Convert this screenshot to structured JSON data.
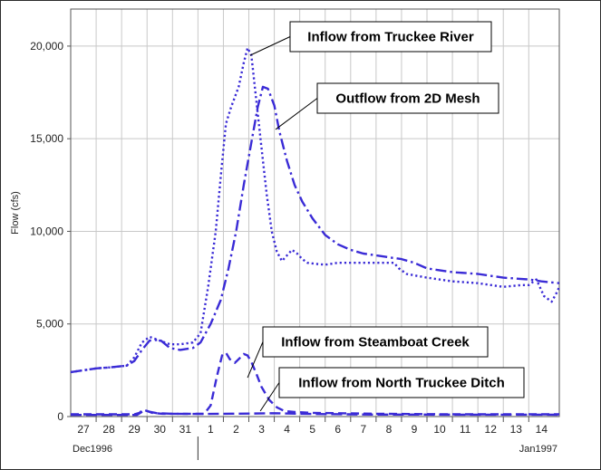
{
  "chart_data": {
    "type": "line",
    "ylabel": "Flow (cfs)",
    "ylim": [
      0,
      22000
    ],
    "yticks": [
      0,
      5000,
      10000,
      15000,
      20000
    ],
    "ytick_labels": [
      "0",
      "5,000",
      "10,000",
      "15,000",
      "20,000"
    ],
    "xlim": [
      0,
      19.2
    ],
    "x_tick_labels": [
      "27",
      "28",
      "29",
      "30",
      "31",
      "1",
      "2",
      "3",
      "4",
      "5",
      "6",
      "7",
      "8",
      "9",
      "10",
      "11",
      "12",
      "13",
      "14"
    ],
    "x_period_labels": [
      {
        "label": "Dec1996",
        "x": 0
      },
      {
        "label": "Jan1997",
        "x": 19.2
      }
    ],
    "grid": true,
    "line_color": "#3a2bd6",
    "series": [
      {
        "id": "truckee",
        "dash": "dotted",
        "points": [
          [
            0,
            2400
          ],
          [
            0.5,
            2500
          ],
          [
            1,
            2600
          ],
          [
            1.5,
            2650
          ],
          [
            2.2,
            2750
          ],
          [
            2.5,
            3200
          ],
          [
            2.8,
            4000
          ],
          [
            3.1,
            4300
          ],
          [
            3.5,
            4100
          ],
          [
            3.9,
            3900
          ],
          [
            4.3,
            3900
          ],
          [
            4.8,
            4000
          ],
          [
            5.1,
            4500
          ],
          [
            5.4,
            7000
          ],
          [
            5.7,
            10000
          ],
          [
            5.9,
            13000
          ],
          [
            6.1,
            15800
          ],
          [
            6.3,
            16700
          ],
          [
            6.6,
            17800
          ],
          [
            6.8,
            19100
          ],
          [
            6.95,
            19900
          ],
          [
            7.1,
            19500
          ],
          [
            7.3,
            17000
          ],
          [
            7.5,
            14500
          ],
          [
            7.7,
            12000
          ],
          [
            7.9,
            10000
          ],
          [
            8.1,
            8900
          ],
          [
            8.3,
            8400
          ],
          [
            8.5,
            8700
          ],
          [
            8.7,
            9000
          ],
          [
            8.9,
            8800
          ],
          [
            9.1,
            8500
          ],
          [
            9.3,
            8300
          ],
          [
            9.6,
            8250
          ],
          [
            10,
            8200
          ],
          [
            10.5,
            8300
          ],
          [
            11,
            8300
          ],
          [
            11.5,
            8300
          ],
          [
            12,
            8300
          ],
          [
            12.7,
            8300
          ],
          [
            12.9,
            8000
          ],
          [
            13.2,
            7700
          ],
          [
            14,
            7500
          ],
          [
            15,
            7300
          ],
          [
            16,
            7200
          ],
          [
            17,
            7000
          ],
          [
            17.7,
            7100
          ],
          [
            18,
            7100
          ],
          [
            18.3,
            7400
          ],
          [
            18.6,
            6500
          ],
          [
            18.9,
            6200
          ],
          [
            19.1,
            6700
          ],
          [
            19.2,
            7000
          ]
        ]
      },
      {
        "id": "mesh",
        "dash": "dash-dot",
        "points": [
          [
            0,
            2400
          ],
          [
            0.5,
            2500
          ],
          [
            1,
            2600
          ],
          [
            1.5,
            2650
          ],
          [
            2.2,
            2750
          ],
          [
            2.5,
            3000
          ],
          [
            2.8,
            3600
          ],
          [
            3.1,
            4100
          ],
          [
            3.5,
            4150
          ],
          [
            3.9,
            3700
          ],
          [
            4.3,
            3600
          ],
          [
            4.8,
            3700
          ],
          [
            5.1,
            4000
          ],
          [
            5.5,
            5000
          ],
          [
            5.9,
            6300
          ],
          [
            6.2,
            8000
          ],
          [
            6.5,
            10000
          ],
          [
            6.8,
            12500
          ],
          [
            7.1,
            14800
          ],
          [
            7.35,
            16700
          ],
          [
            7.55,
            17800
          ],
          [
            7.75,
            17700
          ],
          [
            8,
            16800
          ],
          [
            8.2,
            15400
          ],
          [
            8.5,
            13800
          ],
          [
            8.8,
            12500
          ],
          [
            9.1,
            11600
          ],
          [
            9.5,
            10700
          ],
          [
            10,
            9800
          ],
          [
            10.5,
            9300
          ],
          [
            11,
            9000
          ],
          [
            11.5,
            8800
          ],
          [
            12,
            8700
          ],
          [
            12.5,
            8600
          ],
          [
            13,
            8500
          ],
          [
            13.5,
            8300
          ],
          [
            14,
            8000
          ],
          [
            15,
            7800
          ],
          [
            16,
            7700
          ],
          [
            17,
            7500
          ],
          [
            18,
            7400
          ],
          [
            18.5,
            7300
          ],
          [
            19.2,
            7200
          ]
        ]
      },
      {
        "id": "steamboat",
        "dash": "dashed",
        "points": [
          [
            0,
            120
          ],
          [
            2.5,
            120
          ],
          [
            2.7,
            200
          ],
          [
            2.85,
            380
          ],
          [
            3.0,
            300
          ],
          [
            3.2,
            200
          ],
          [
            3.6,
            150
          ],
          [
            5,
            150
          ],
          [
            5.25,
            150
          ],
          [
            5.5,
            600
          ],
          [
            5.75,
            2200
          ],
          [
            5.95,
            3300
          ],
          [
            6.1,
            3450
          ],
          [
            6.25,
            3100
          ],
          [
            6.45,
            2900
          ],
          [
            6.6,
            3100
          ],
          [
            6.8,
            3380
          ],
          [
            6.95,
            3300
          ],
          [
            7.1,
            2950
          ],
          [
            7.3,
            2300
          ],
          [
            7.5,
            1600
          ],
          [
            7.8,
            900
          ],
          [
            8.1,
            500
          ],
          [
            8.4,
            300
          ],
          [
            8.8,
            250
          ],
          [
            9.5,
            200
          ],
          [
            12,
            150
          ],
          [
            15,
            120
          ],
          [
            19.2,
            120
          ]
        ]
      },
      {
        "id": "north",
        "dash": "long-dash",
        "points": [
          [
            0,
            90
          ],
          [
            2.6,
            90
          ],
          [
            2.8,
            250
          ],
          [
            2.95,
            330
          ],
          [
            3.1,
            260
          ],
          [
            3.4,
            180
          ],
          [
            4,
            150
          ],
          [
            5,
            140
          ],
          [
            6,
            150
          ],
          [
            7,
            160
          ],
          [
            8,
            180
          ],
          [
            9,
            150
          ],
          [
            10,
            130
          ],
          [
            12,
            110
          ],
          [
            19.2,
            100
          ]
        ]
      }
    ],
    "annotations": [
      {
        "id": "a-truckee",
        "label": "Inflow from Truckee River",
        "target_x": 7.05,
        "target_y": 19500
      },
      {
        "id": "a-mesh",
        "label": "Outflow from 2D Mesh",
        "target_x": 8.05,
        "target_y": 15500
      },
      {
        "id": "a-steamboat",
        "label": "Inflow from Steamboat Creek",
        "target_x": 6.95,
        "target_y": 2100
      },
      {
        "id": "a-north",
        "label": "Inflow from North Truckee Ditch",
        "target_x": 7.45,
        "target_y": 300
      }
    ]
  }
}
